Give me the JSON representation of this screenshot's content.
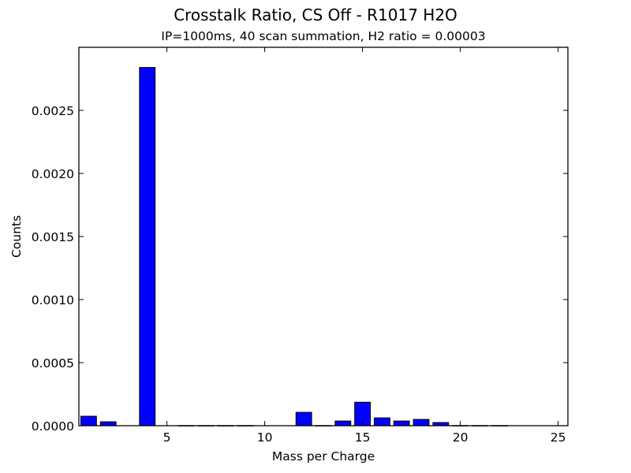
{
  "chart_data": {
    "type": "bar",
    "title": "Crosstalk Ratio, CS Off - R1017 H2O",
    "subtitle": "IP=1000ms, 40 scan summation, H2 ratio = 0.00003",
    "xlabel": "Mass per Charge",
    "ylabel": "Counts",
    "xlim": [
      0.5,
      25.5
    ],
    "ylim": [
      0,
      0.003
    ],
    "xticks": [
      5,
      10,
      15,
      20,
      25
    ],
    "xtick_labels": [
      "5",
      "10",
      "15",
      "20",
      "25"
    ],
    "yticks": [
      0,
      0.0005,
      0.001,
      0.0015,
      0.002,
      0.0025
    ],
    "ytick_labels": [
      "0.0000",
      "0.0005",
      "0.0010",
      "0.0015",
      "0.0020",
      "0.0025"
    ],
    "grid": false,
    "legend": null,
    "bar_color": "#0000ff",
    "bar_edge_color": "#000000",
    "bar_width": 0.8,
    "categories": [
      1,
      2,
      3,
      4,
      5,
      6,
      7,
      8,
      9,
      10,
      11,
      12,
      13,
      14,
      15,
      16,
      17,
      18,
      19,
      20,
      21,
      22,
      23,
      24,
      25
    ],
    "values": [
      7.5e-05,
      3.1e-05,
      0,
      0.00284,
      0,
      1e-06,
      1e-06,
      1e-06,
      1e-06,
      0,
      0,
      0.000106,
      1e-06,
      3.7e-05,
      0.000186,
      6.2e-05,
      3.7e-05,
      5e-05,
      2.5e-05,
      1e-06,
      1e-06,
      1e-06,
      0,
      0,
      0
    ]
  }
}
